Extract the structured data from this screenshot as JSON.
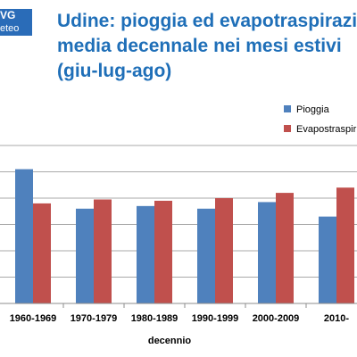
{
  "logo": {
    "top": "VG",
    "bottom": "eteo"
  },
  "title_lines": [
    "Udine: pioggia ed evapotraspirazio",
    "media decennale nei mesi estivi",
    "(giu-lug-ago)"
  ],
  "colors": {
    "title": "#1f6fb8",
    "pioggia": "#4f81bd",
    "evapo": "#c0504d",
    "logo_bg": "#2a6cb8"
  },
  "chart_data": {
    "type": "bar",
    "categories": [
      "1960-1969",
      "1970-1979",
      "1980-1989",
      "1990-1999",
      "2000-2009",
      "2010-"
    ],
    "series": [
      {
        "name": "Pioggia",
        "values": [
          5.1,
          3.6,
          3.7,
          3.6,
          3.85,
          3.3
        ]
      },
      {
        "name": "Evapostraspir",
        "values": [
          3.8,
          3.95,
          3.9,
          4.0,
          4.2,
          4.4
        ]
      }
    ],
    "title": "Udine: pioggia ed evapotraspirazio media decennale nei mesi estivi (giu-lug-ago)",
    "xlabel": "decennio",
    "ylabel": "",
    "ylim": [
      0,
      6
    ],
    "grid": true,
    "legend_position": "top-right"
  }
}
